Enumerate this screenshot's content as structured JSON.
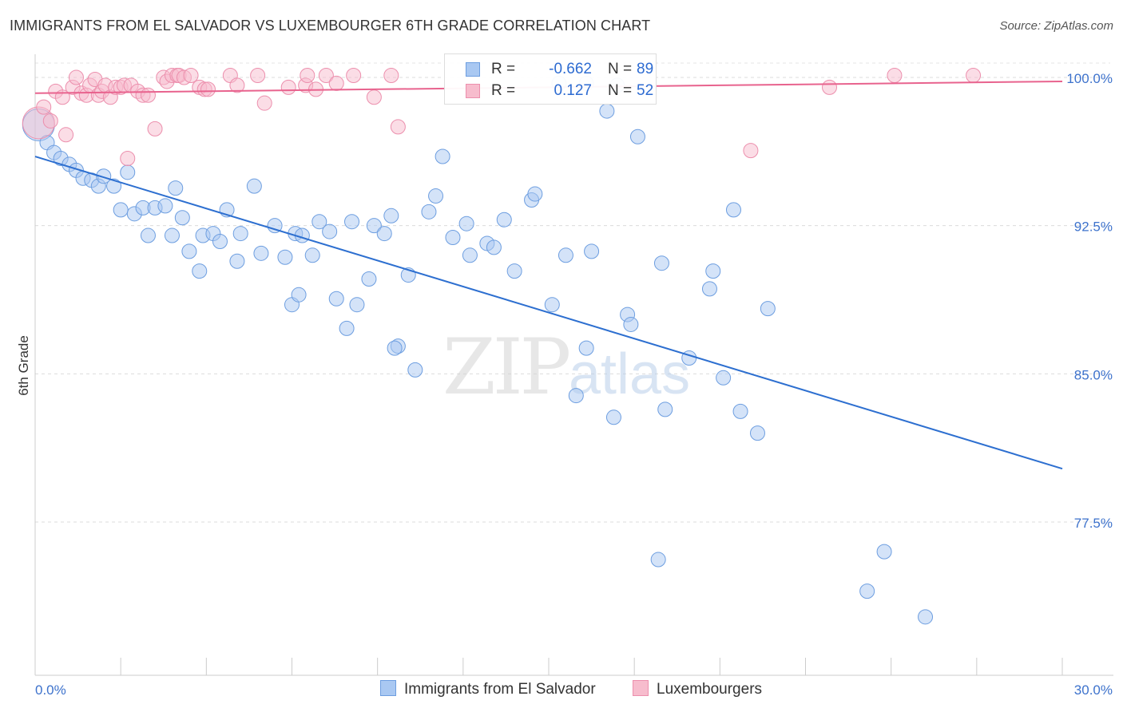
{
  "title": "IMMIGRANTS FROM EL SALVADOR VS LUXEMBOURGER 6TH GRADE CORRELATION CHART",
  "source": "Source: ZipAtlas.com",
  "watermark": {
    "zip": "ZIP",
    "atlas": "atlas"
  },
  "legend": {
    "r_label": "R =",
    "n_label": "N =",
    "rows": [
      {
        "r": "-0.662",
        "n": "89",
        "fill": "#a9c8f2",
        "stroke": "#6d9ee0"
      },
      {
        "r": "0.127",
        "n": "52",
        "fill": "#f7bccd",
        "stroke": "#ec8fad"
      }
    ]
  },
  "chart_data": {
    "type": "scatter",
    "ylabel": "6th Grade",
    "xlim": [
      0,
      30
    ],
    "ylim": [
      71,
      101.5
    ],
    "x_tick_labels": [
      "0.0%",
      "30.0%"
    ],
    "y_ticks": [
      77.5,
      85.0,
      92.5,
      100.0
    ],
    "y_tick_labels": [
      "77.5%",
      "85.0%",
      "92.5%",
      "100.0%"
    ],
    "grid": true,
    "series": [
      {
        "name": "Immigrants from El Salvador",
        "color": "#a9c8f2",
        "stroke": "#6d9ee0",
        "line_color": "#2d6fd0",
        "trend": {
          "x": [
            0,
            30
          ],
          "y": [
            96.0,
            80.2
          ]
        },
        "points": [
          [
            0.1,
            97.6
          ],
          [
            0.35,
            96.7
          ],
          [
            0.55,
            96.2
          ],
          [
            0.75,
            95.9
          ],
          [
            1.0,
            95.6
          ],
          [
            1.2,
            95.3
          ],
          [
            1.4,
            94.9
          ],
          [
            1.65,
            94.8
          ],
          [
            1.85,
            94.5
          ],
          [
            2.0,
            95.0
          ],
          [
            2.3,
            94.5
          ],
          [
            2.7,
            95.2
          ],
          [
            2.5,
            93.3
          ],
          [
            2.9,
            93.1
          ],
          [
            3.15,
            93.4
          ],
          [
            3.5,
            93.4
          ],
          [
            3.8,
            93.5
          ],
          [
            4.1,
            94.4
          ],
          [
            4.3,
            92.9
          ],
          [
            3.3,
            92.0
          ],
          [
            4.0,
            92.0
          ],
          [
            4.5,
            91.2
          ],
          [
            4.9,
            92.0
          ],
          [
            5.2,
            92.1
          ],
          [
            5.4,
            91.7
          ],
          [
            5.6,
            93.3
          ],
          [
            4.8,
            90.2
          ],
          [
            5.9,
            90.7
          ],
          [
            6.0,
            92.1
          ],
          [
            6.4,
            94.5
          ],
          [
            6.6,
            91.1
          ],
          [
            7.0,
            92.5
          ],
          [
            7.3,
            90.9
          ],
          [
            7.6,
            92.1
          ],
          [
            7.8,
            92.0
          ],
          [
            7.5,
            88.5
          ],
          [
            7.7,
            89.0
          ],
          [
            8.3,
            92.7
          ],
          [
            8.1,
            91.0
          ],
          [
            8.6,
            92.2
          ],
          [
            8.8,
            88.8
          ],
          [
            9.1,
            87.3
          ],
          [
            9.25,
            92.7
          ],
          [
            9.4,
            88.5
          ],
          [
            9.75,
            89.8
          ],
          [
            9.9,
            92.5
          ],
          [
            10.2,
            92.1
          ],
          [
            10.4,
            93.0
          ],
          [
            10.6,
            86.4
          ],
          [
            10.5,
            86.3
          ],
          [
            10.9,
            90.0
          ],
          [
            11.1,
            85.2
          ],
          [
            11.5,
            93.2
          ],
          [
            11.9,
            96.0
          ],
          [
            11.7,
            94.0
          ],
          [
            12.2,
            91.9
          ],
          [
            12.6,
            92.6
          ],
          [
            12.7,
            91.0
          ],
          [
            13.2,
            91.6
          ],
          [
            13.4,
            91.4
          ],
          [
            13.7,
            92.8
          ],
          [
            14.0,
            90.2
          ],
          [
            14.5,
            93.8
          ],
          [
            14.6,
            94.1
          ],
          [
            15.1,
            88.5
          ],
          [
            15.5,
            91.0
          ],
          [
            15.8,
            83.9
          ],
          [
            16.1,
            86.3
          ],
          [
            16.25,
            91.2
          ],
          [
            16.1,
            99.7
          ],
          [
            15.3,
            99.7
          ],
          [
            16.7,
            98.3
          ],
          [
            16.9,
            82.8
          ],
          [
            17.3,
            88.0
          ],
          [
            17.4,
            87.5
          ],
          [
            17.6,
            97.0
          ],
          [
            17.0,
            99.6
          ],
          [
            18.3,
            90.6
          ],
          [
            18.4,
            83.2
          ],
          [
            18.2,
            75.6
          ],
          [
            19.1,
            85.8
          ],
          [
            19.7,
            89.3
          ],
          [
            19.8,
            90.2
          ],
          [
            20.1,
            84.8
          ],
          [
            20.4,
            93.3
          ],
          [
            20.6,
            83.1
          ],
          [
            21.1,
            82.0
          ],
          [
            21.4,
            88.3
          ],
          [
            24.3,
            74.0
          ],
          [
            24.8,
            76.0
          ],
          [
            26.0,
            72.7
          ]
        ]
      },
      {
        "name": "Luxembourgers",
        "color": "#f7bccd",
        "stroke": "#ec8fad",
        "line_color": "#e8638e",
        "trend": {
          "x": [
            0,
            30
          ],
          "y": [
            99.2,
            99.8
          ]
        },
        "points": [
          [
            0.1,
            97.7
          ],
          [
            0.25,
            98.5
          ],
          [
            0.45,
            97.8
          ],
          [
            0.6,
            99.3
          ],
          [
            0.8,
            99.0
          ],
          [
            0.9,
            97.1
          ],
          [
            1.1,
            99.5
          ],
          [
            1.2,
            100.0
          ],
          [
            1.35,
            99.2
          ],
          [
            1.5,
            99.1
          ],
          [
            1.6,
            99.6
          ],
          [
            1.75,
            99.9
          ],
          [
            1.85,
            99.1
          ],
          [
            1.95,
            99.3
          ],
          [
            2.05,
            99.6
          ],
          [
            2.2,
            99.0
          ],
          [
            2.35,
            99.5
          ],
          [
            2.5,
            99.5
          ],
          [
            2.6,
            99.6
          ],
          [
            2.8,
            99.6
          ],
          [
            2.7,
            95.9
          ],
          [
            3.0,
            99.3
          ],
          [
            3.15,
            99.1
          ],
          [
            3.3,
            99.1
          ],
          [
            3.5,
            97.4
          ],
          [
            3.75,
            100.0
          ],
          [
            3.85,
            99.8
          ],
          [
            4.0,
            100.1
          ],
          [
            4.15,
            100.1
          ],
          [
            4.2,
            100.1
          ],
          [
            4.35,
            100.0
          ],
          [
            4.55,
            100.1
          ],
          [
            4.8,
            99.5
          ],
          [
            4.95,
            99.4
          ],
          [
            5.05,
            99.4
          ],
          [
            5.7,
            100.1
          ],
          [
            5.9,
            99.6
          ],
          [
            6.5,
            100.1
          ],
          [
            6.7,
            98.7
          ],
          [
            7.4,
            99.5
          ],
          [
            7.9,
            99.6
          ],
          [
            7.95,
            100.1
          ],
          [
            8.2,
            99.4
          ],
          [
            8.5,
            100.1
          ],
          [
            8.8,
            99.7
          ],
          [
            9.3,
            100.1
          ],
          [
            9.9,
            99.0
          ],
          [
            10.4,
            100.1
          ],
          [
            10.6,
            97.5
          ],
          [
            20.9,
            96.3
          ],
          [
            23.2,
            99.5
          ],
          [
            25.1,
            100.1
          ],
          [
            27.4,
            100.1
          ]
        ]
      }
    ]
  }
}
